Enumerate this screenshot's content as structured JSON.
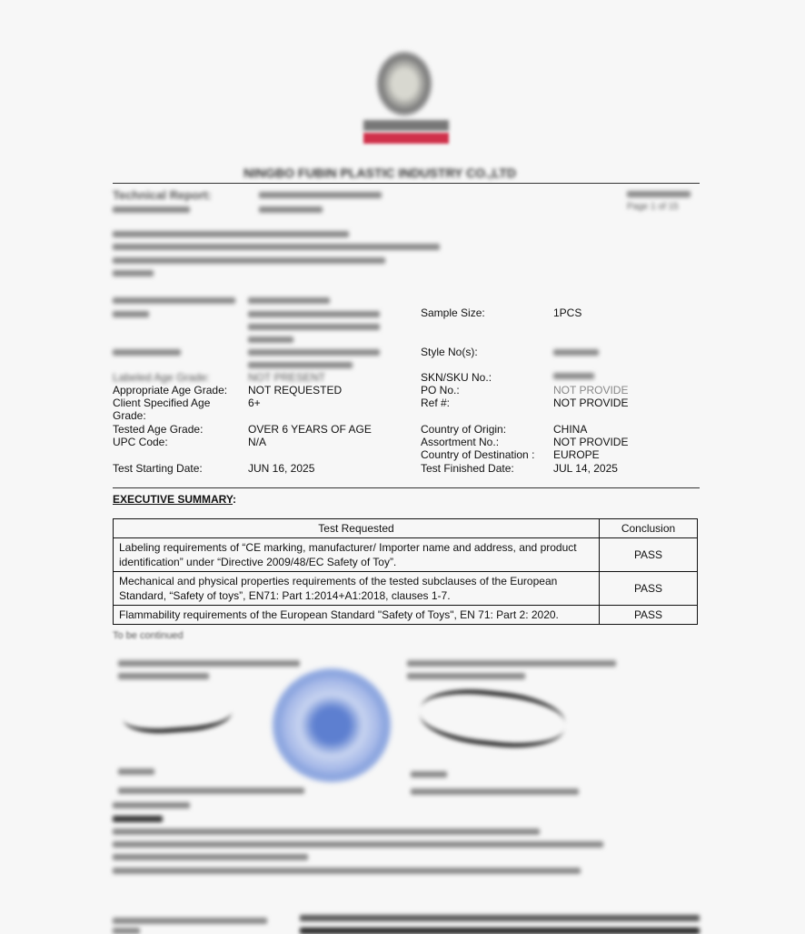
{
  "header": {
    "company": "NINGBO FUBIN PLASTIC INDUSTRY CO.,LTD",
    "report_label": "Technical Report:",
    "report_page": "Page 1 of 15",
    "logo": "bureau-veritas-logo"
  },
  "details": {
    "left": [
      {
        "label": "Labeled Age Grade:",
        "value": "NOT PRESENT"
      },
      {
        "label": "Appropriate Age Grade:",
        "value": "NOT REQUESTED"
      },
      {
        "label": "Client Specified Age Grade:",
        "value": "6+"
      },
      {
        "label": "Tested Age Grade:",
        "value": "OVER 6 YEARS OF AGE"
      },
      {
        "label": "UPC Code:",
        "value": "N/A"
      },
      {
        "label": "Test Starting Date:",
        "value": "JUN 16, 2025"
      }
    ],
    "right": [
      {
        "label": "Sample Size:",
        "value": "1PCS"
      },
      {
        "label": "Style No(s):",
        "value": ""
      },
      {
        "label": "SKN/SKU No.:",
        "value": ""
      },
      {
        "label": "PO No.:",
        "value": "NOT PROVIDE"
      },
      {
        "label": "Ref #:",
        "value": "NOT PROVIDE"
      },
      {
        "label": "Country of Origin:",
        "value": "CHINA"
      },
      {
        "label": "Assortment No.:",
        "value": "NOT PROVIDE"
      },
      {
        "label": "Country of Destination :",
        "value": "EUROPE"
      },
      {
        "label": "Test Finished Date:",
        "value": "JUL 14, 2025"
      }
    ]
  },
  "summary": {
    "title": "EXECUTIVE SUMMARY",
    "colon": ":",
    "columns": [
      "Test Requested",
      "Conclusion"
    ],
    "rows": [
      {
        "test": "Labeling requirements of “CE marking, manufacturer/ Importer name and address, and product identification” under “Directive 2009/48/EC Safety of Toy”.",
        "result": "PASS"
      },
      {
        "test": "Mechanical and physical properties requirements of the tested subclauses of the European Standard, “Safety of toys”, EN71: Part 1:2014+A1:2018, clauses 1-7.",
        "result": "PASS"
      },
      {
        "test": "Flammability requirements of the European Standard \"Safety of Toys\", EN 71: Part 2: 2020.",
        "result": "PASS"
      }
    ],
    "continued": "To be continued"
  }
}
